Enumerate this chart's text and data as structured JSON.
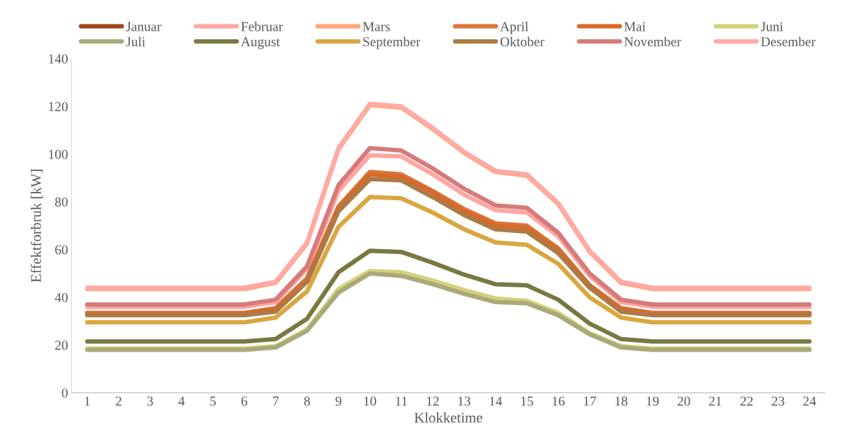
{
  "chart_data": {
    "type": "line",
    "xlabel": "Klokketime",
    "ylabel": "Effektforbruk [kW]",
    "categories": [
      "1",
      "2",
      "3",
      "4",
      "5",
      "6",
      "7",
      "8",
      "9",
      "10",
      "11",
      "12",
      "13",
      "14",
      "15",
      "16",
      "17",
      "18",
      "19",
      "20",
      "21",
      "22",
      "23",
      "24"
    ],
    "ylim": [
      0,
      140
    ],
    "yticks": [
      0,
      20,
      40,
      60,
      80,
      100,
      120,
      140
    ],
    "grid": false,
    "legend": "top",
    "marker": "none",
    "line_style": "solid",
    "series": [
      {
        "name": "Januar",
        "color": "#9b4a1c",
        "values": [
          null,
          null,
          null,
          null,
          null,
          null,
          null,
          null,
          null,
          null,
          null,
          null,
          null,
          null,
          null,
          null,
          null,
          null,
          null,
          null,
          null,
          null,
          null,
          null
        ]
      },
      {
        "name": "Februar",
        "color": "#ffa7a3",
        "values": [
          36,
          36,
          36,
          36,
          36,
          36,
          38,
          52,
          84.5,
          99.5,
          99,
          91.5,
          83,
          76.5,
          75.5,
          65.5,
          49,
          38,
          36,
          36,
          36,
          36,
          36,
          36
        ]
      },
      {
        "name": "Mars",
        "color": "#ffa878",
        "values": [
          43.5,
          43.5,
          43.5,
          43.5,
          43.5,
          43.5,
          46,
          62.5,
          102,
          120.5,
          119.5,
          110.5,
          100.5,
          92.5,
          91,
          79,
          59,
          46,
          43.5,
          43.5,
          43.5,
          43.5,
          43.5,
          43.5
        ]
      },
      {
        "name": "April",
        "color": "#d9773d",
        "values": [
          33.5,
          33.5,
          33.5,
          33.5,
          33.5,
          33.5,
          35.5,
          48,
          78,
          92.5,
          91.5,
          84.5,
          77,
          71,
          70,
          60.5,
          45,
          35.5,
          33.5,
          33.5,
          33.5,
          33.5,
          33.5,
          33.5
        ]
      },
      {
        "name": "Mai",
        "color": "#d9692a",
        "values": [
          33,
          33,
          33,
          33,
          33,
          33,
          35,
          47.5,
          77.5,
          91.5,
          90.5,
          84,
          76,
          70,
          69,
          60,
          45,
          35,
          33,
          33,
          33,
          33,
          33,
          33
        ]
      },
      {
        "name": "Juni",
        "color": "#d4d17a",
        "values": [
          18.5,
          18.5,
          18.5,
          18.5,
          18.5,
          18.5,
          19.5,
          26.5,
          43.5,
          51,
          50.5,
          47,
          43,
          39.5,
          38.5,
          33.5,
          25,
          19.5,
          18.5,
          18.5,
          18.5,
          18.5,
          18.5,
          18.5
        ]
      },
      {
        "name": "Juli",
        "color": "#aaa97a",
        "values": [
          18,
          18,
          18,
          18,
          18,
          18,
          19,
          26,
          42,
          50,
          49,
          45.5,
          41.5,
          38,
          37.5,
          32.5,
          24.5,
          19,
          18,
          18,
          18,
          18,
          18,
          18
        ]
      },
      {
        "name": "August",
        "color": "#7a7841",
        "values": [
          21.5,
          21.5,
          21.5,
          21.5,
          21.5,
          21.5,
          22.5,
          31,
          50.5,
          59.5,
          59,
          54.5,
          49.5,
          45.5,
          45,
          39,
          29,
          22.5,
          21.5,
          21.5,
          21.5,
          21.5,
          21.5,
          21.5
        ]
      },
      {
        "name": "September",
        "color": "#d9a640",
        "values": [
          29.5,
          29.5,
          29.5,
          29.5,
          29.5,
          29.5,
          31.5,
          42.5,
          69.5,
          82,
          81.5,
          75.5,
          68.5,
          63,
          62,
          54,
          40,
          31.5,
          29.5,
          29.5,
          29.5,
          29.5,
          29.5,
          29.5
        ]
      },
      {
        "name": "Oktober",
        "color": "#ad7a45",
        "values": [
          32.5,
          32.5,
          32.5,
          32.5,
          32.5,
          32.5,
          34,
          46.5,
          76,
          89.5,
          89,
          82,
          74.5,
          68.5,
          67.5,
          58.5,
          44,
          34,
          32.5,
          32.5,
          32.5,
          32.5,
          32.5,
          32.5
        ]
      },
      {
        "name": "November",
        "color": "#d77a7a",
        "values": [
          37,
          37,
          37,
          37,
          37,
          37,
          39,
          53,
          87,
          102.5,
          101.5,
          94,
          85.5,
          78.5,
          77.5,
          67,
          50,
          39,
          37,
          37,
          37,
          37,
          37,
          37
        ]
      },
      {
        "name": "Desember",
        "color": "#ffaaa6",
        "values": [
          44,
          44,
          44,
          44,
          44,
          44,
          46.5,
          63,
          102.5,
          121,
          120,
          111,
          101,
          93,
          91.5,
          79.5,
          59.5,
          46.5,
          44,
          44,
          44,
          44,
          44,
          44
        ]
      }
    ]
  }
}
